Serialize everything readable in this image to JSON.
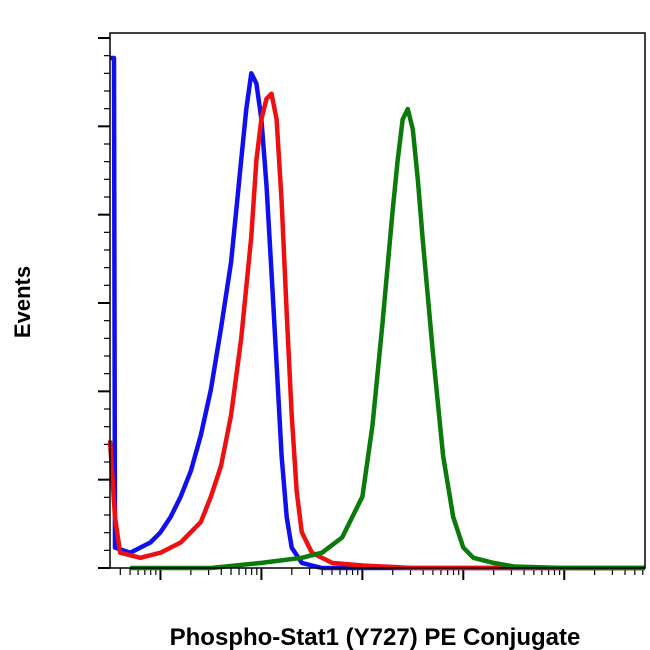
{
  "chart_data": {
    "type": "line",
    "title": "",
    "xlabel": "Phospho-Stat1 (Y727) PE Conjugate",
    "ylabel": "Events",
    "xscale": "log",
    "xlim": [
      -0.5,
      4.8
    ],
    "ylim": [
      0,
      100
    ],
    "grid": false,
    "legend": "none",
    "series": [
      {
        "color": "#1010ee",
        "points": [
          [
            -0.5,
            100
          ],
          [
            -0.46,
            100
          ],
          [
            -0.45,
            4
          ],
          [
            -0.3,
            3
          ],
          [
            -0.1,
            5
          ],
          [
            0.0,
            7
          ],
          [
            0.1,
            10
          ],
          [
            0.2,
            14
          ],
          [
            0.3,
            19
          ],
          [
            0.4,
            26
          ],
          [
            0.5,
            35
          ],
          [
            0.6,
            47
          ],
          [
            0.7,
            60
          ],
          [
            0.75,
            70
          ],
          [
            0.8,
            80
          ],
          [
            0.85,
            90
          ],
          [
            0.9,
            97
          ],
          [
            0.95,
            95
          ],
          [
            1.0,
            88
          ],
          [
            1.05,
            75
          ],
          [
            1.1,
            58
          ],
          [
            1.15,
            40
          ],
          [
            1.2,
            22
          ],
          [
            1.25,
            10
          ],
          [
            1.3,
            4
          ],
          [
            1.4,
            1
          ],
          [
            1.6,
            0
          ],
          [
            4.8,
            0
          ]
        ]
      },
      {
        "color": "#ee1010",
        "points": [
          [
            -0.5,
            25
          ],
          [
            -0.45,
            10
          ],
          [
            -0.4,
            3
          ],
          [
            -0.2,
            2
          ],
          [
            0.0,
            3
          ],
          [
            0.2,
            5
          ],
          [
            0.4,
            9
          ],
          [
            0.5,
            14
          ],
          [
            0.6,
            20
          ],
          [
            0.7,
            30
          ],
          [
            0.8,
            45
          ],
          [
            0.9,
            65
          ],
          [
            0.95,
            80
          ],
          [
            1.0,
            88
          ],
          [
            1.05,
            92
          ],
          [
            1.1,
            93
          ],
          [
            1.15,
            88
          ],
          [
            1.2,
            72
          ],
          [
            1.25,
            50
          ],
          [
            1.3,
            30
          ],
          [
            1.35,
            15
          ],
          [
            1.4,
            7
          ],
          [
            1.5,
            3
          ],
          [
            1.7,
            1
          ],
          [
            2.0,
            0.5
          ],
          [
            2.5,
            0
          ],
          [
            4.8,
            0
          ]
        ]
      },
      {
        "color": "#0a7a0a",
        "points": [
          [
            -0.3,
            0
          ],
          [
            0.5,
            0
          ],
          [
            1.0,
            1
          ],
          [
            1.4,
            2
          ],
          [
            1.6,
            3
          ],
          [
            1.8,
            6
          ],
          [
            2.0,
            14
          ],
          [
            2.1,
            28
          ],
          [
            2.2,
            48
          ],
          [
            2.3,
            70
          ],
          [
            2.35,
            80
          ],
          [
            2.4,
            88
          ],
          [
            2.45,
            90
          ],
          [
            2.5,
            86
          ],
          [
            2.55,
            76
          ],
          [
            2.6,
            64
          ],
          [
            2.7,
            42
          ],
          [
            2.8,
            22
          ],
          [
            2.9,
            10
          ],
          [
            3.0,
            4
          ],
          [
            3.1,
            2
          ],
          [
            3.3,
            1
          ],
          [
            3.5,
            0.3
          ],
          [
            4.0,
            0
          ],
          [
            4.8,
            0
          ]
        ]
      }
    ]
  }
}
